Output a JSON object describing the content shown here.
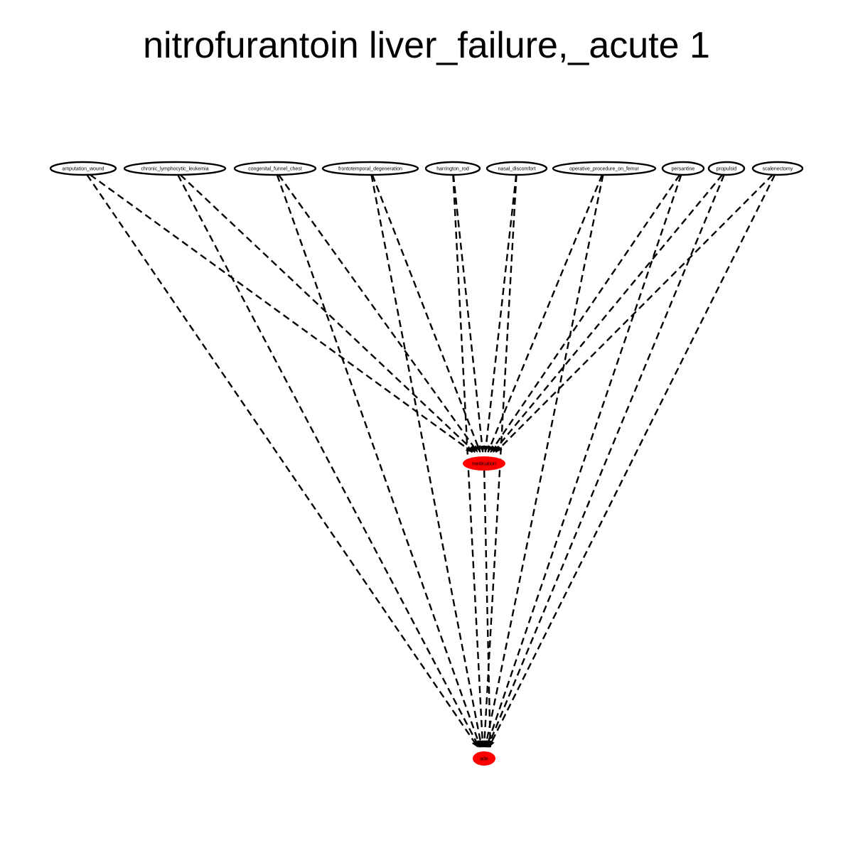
{
  "title": "nitrofurantoin liver_failure,_acute 1",
  "colors": {
    "background": "#ffffff",
    "edge": "#000000",
    "node_stroke": "#000000",
    "node_fill_top": "#ffffff",
    "node_fill_target": "#ff0000"
  },
  "graph": {
    "top_nodes": [
      {
        "id": "amputation_wound",
        "label": "amputation_wound"
      },
      {
        "id": "chronic_lymphocytic_leukemia",
        "label": "chronic_lymphocytic_leukemia"
      },
      {
        "id": "congenital_funnel_chest",
        "label": "congenital_funnel_chest"
      },
      {
        "id": "frontotemporal_degeneration",
        "label": "frontotemporal_degeneration"
      },
      {
        "id": "harrington_rod",
        "label": "harrington_rod"
      },
      {
        "id": "nasal_discomfort",
        "label": "nasal_discomfort"
      },
      {
        "id": "operative_procedure_on_femur",
        "label": "operative_procedure_on_femur"
      },
      {
        "id": "persantine",
        "label": "persantine"
      },
      {
        "id": "propulsid",
        "label": "propulsid"
      },
      {
        "id": "scalenectomy",
        "label": "scalenectomy"
      }
    ],
    "middle_node": {
      "id": "medication",
      "label": "medication"
    },
    "bottom_node": {
      "id": "ade",
      "label": "ade"
    },
    "edge_style": "dashed",
    "edges": [
      {
        "from": "amputation_wound",
        "to": "medication"
      },
      {
        "from": "amputation_wound",
        "to": "ade"
      },
      {
        "from": "chronic_lymphocytic_leukemia",
        "to": "medication"
      },
      {
        "from": "chronic_lymphocytic_leukemia",
        "to": "ade"
      },
      {
        "from": "congenital_funnel_chest",
        "to": "medication"
      },
      {
        "from": "congenital_funnel_chest",
        "to": "ade"
      },
      {
        "from": "frontotemporal_degeneration",
        "to": "medication"
      },
      {
        "from": "frontotemporal_degeneration",
        "to": "ade"
      },
      {
        "from": "harrington_rod",
        "to": "medication"
      },
      {
        "from": "harrington_rod",
        "to": "ade"
      },
      {
        "from": "nasal_discomfort",
        "to": "medication"
      },
      {
        "from": "nasal_discomfort",
        "to": "ade"
      },
      {
        "from": "operative_procedure_on_femur",
        "to": "medication"
      },
      {
        "from": "operative_procedure_on_femur",
        "to": "ade"
      },
      {
        "from": "persantine",
        "to": "medication"
      },
      {
        "from": "persantine",
        "to": "ade"
      },
      {
        "from": "propulsid",
        "to": "medication"
      },
      {
        "from": "propulsid",
        "to": "ade"
      },
      {
        "from": "scalenectomy",
        "to": "medication"
      },
      {
        "from": "scalenectomy",
        "to": "ade"
      },
      {
        "from": "medication",
        "to": "ade"
      }
    ]
  }
}
